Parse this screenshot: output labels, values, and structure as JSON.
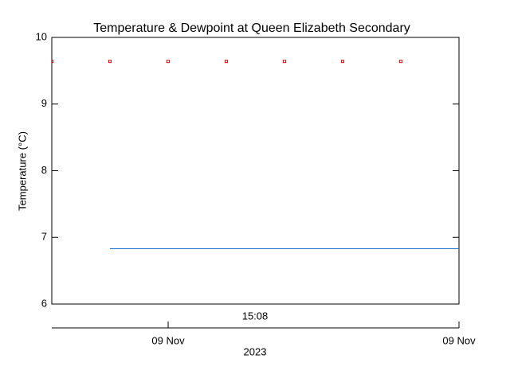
{
  "chart_data": {
    "type": "line",
    "title": "Temperature & Dewpoint at Queen Elizabeth Secondary",
    "y_label": "Temperature (°C)",
    "time_label": "15:08",
    "year_label": "2023",
    "categories": [
      null,
      null,
      "09 Nov",
      null,
      null,
      null,
      null,
      "09 Nov"
    ],
    "series": [
      {
        "color": "#ff0000",
        "marker": "square",
        "values": [
          9.64,
          9.64,
          9.64,
          9.64,
          9.64,
          9.64,
          9.64,
          null
        ]
      },
      {
        "color": "#1f6fd0",
        "marker": "none",
        "values": [
          null,
          6.83,
          6.83,
          6.83,
          6.83,
          6.83,
          6.83,
          6.83
        ]
      }
    ],
    "ylim": [
      6,
      10
    ],
    "yticks": [
      6,
      7,
      8,
      9,
      10
    ]
  }
}
